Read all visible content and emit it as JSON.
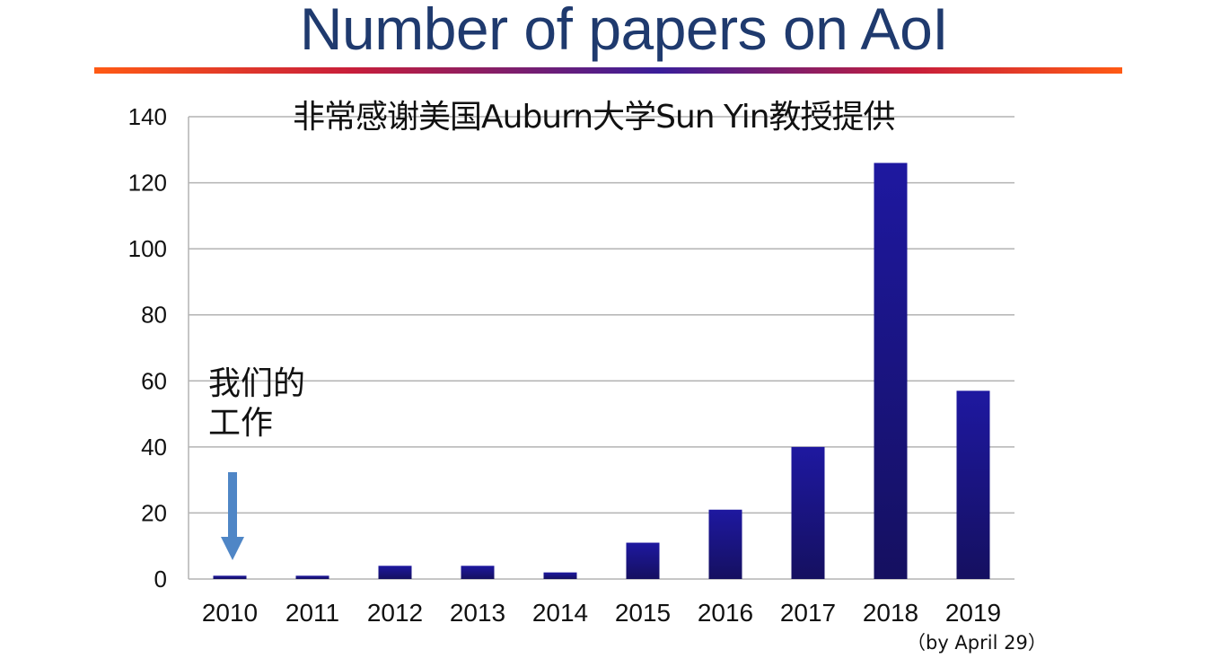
{
  "slide": {
    "title": "Number of papers on AoI",
    "subtitle": "非常感谢美国Auburn大学Sun Yin教授提供",
    "note_line1": "我们的",
    "note_line2": "工作",
    "last_category_note": "（by April 29）",
    "colors": {
      "title": "#1f3a6e",
      "bar": "#1c1690",
      "arrow": "#4f86c6",
      "grid": "#b3b3b3"
    }
  },
  "chart_data": {
    "type": "bar",
    "categories": [
      "2010",
      "2011",
      "2012",
      "2013",
      "2014",
      "2015",
      "2016",
      "2017",
      "2018",
      "2019"
    ],
    "values": [
      1,
      1,
      4,
      4,
      2,
      11,
      21,
      40,
      126,
      57
    ],
    "ylim": [
      0,
      140
    ],
    "yticks": [
      0,
      20,
      40,
      60,
      80,
      100,
      120,
      140
    ],
    "grid": true,
    "legend": "none",
    "xlabel": "",
    "ylabel": "",
    "annotation": {
      "text": "我们的工作",
      "points_to": "2010",
      "marker": "down-arrow"
    }
  }
}
